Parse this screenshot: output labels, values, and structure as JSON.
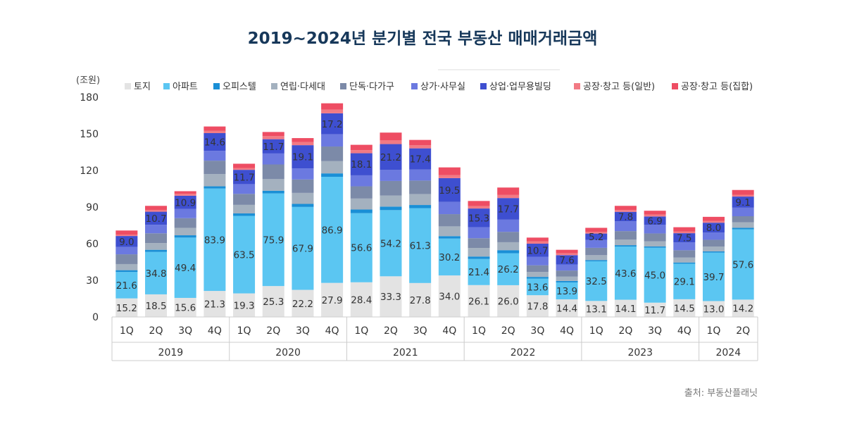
{
  "chart_data": {
    "type": "stacked-bar",
    "title": "2019~2024년 분기별 전국 부동산 매매거래금액",
    "unit_label": "(조원)",
    "source": "출처: 부동산플래닛",
    "ylim": [
      0,
      180
    ],
    "yticks": [
      "0",
      "30",
      "60",
      "90",
      "120",
      "150",
      "180"
    ],
    "ytick_values": [
      0,
      30,
      60,
      90,
      120,
      150,
      180
    ],
    "quarters": [
      "1Q",
      "2Q",
      "3Q",
      "4Q",
      "1Q",
      "2Q",
      "3Q",
      "4Q",
      "1Q",
      "2Q",
      "3Q",
      "4Q",
      "1Q",
      "2Q",
      "3Q",
      "4Q",
      "1Q",
      "2Q",
      "3Q",
      "4Q",
      "1Q",
      "2Q"
    ],
    "years": [
      {
        "label": "2019",
        "count": 4
      },
      {
        "label": "2020",
        "count": 4
      },
      {
        "label": "2021",
        "count": 4
      },
      {
        "label": "2022",
        "count": 4
      },
      {
        "label": "2023",
        "count": 4
      },
      {
        "label": "2024",
        "count": 2
      }
    ],
    "series": [
      {
        "name": "토지",
        "color": "#e3e3e3",
        "show_labels": true,
        "values": [
          15.2,
          18.5,
          15.6,
          21.3,
          19.3,
          25.3,
          22.2,
          27.9,
          28.4,
          33.3,
          27.8,
          34.0,
          26.1,
          26.0,
          17.8,
          14.4,
          13.1,
          14.1,
          11.7,
          14.5,
          13.0,
          14.2
        ],
        "labels": [
          "15.2",
          "18.5",
          "15.6",
          "21.3",
          "19.3",
          "25.3",
          "22.2",
          "27.9",
          "28.4",
          "33.3",
          "27.8",
          "34.0",
          "26.1",
          "26.0",
          "17.8",
          "14.4",
          "13.1",
          "14.1",
          "11.7",
          "14.5",
          "13.0",
          "14.2"
        ]
      },
      {
        "name": "아파트",
        "color": "#5bc6f2",
        "show_labels": true,
        "values": [
          21.6,
          34.8,
          49.4,
          83.9,
          63.5,
          75.9,
          67.9,
          86.9,
          56.6,
          54.2,
          61.3,
          30.2,
          21.4,
          26.2,
          13.6,
          13.9,
          32.5,
          43.6,
          45.0,
          29.1,
          39.7,
          57.6
        ],
        "labels": [
          "21.6",
          "34.8",
          "49.4",
          "83.9",
          "63.5",
          "75.9",
          "67.9",
          "86.9",
          "56.6",
          "54.2",
          "61.3",
          "30.2",
          "21.4",
          "26.2",
          "13.6",
          "13.9",
          "32.5",
          "43.6",
          "45.0",
          "29.1",
          "39.7",
          "57.6"
        ]
      },
      {
        "name": "오피스텔",
        "color": "#1a8fd6",
        "show_labels": false,
        "values": [
          1.5,
          1.7,
          1.9,
          1.8,
          2.0,
          2.2,
          2.5,
          2.8,
          3.0,
          2.9,
          2.6,
          2.0,
          2.0,
          2.5,
          1.4,
          1.2,
          1.0,
          1.1,
          1.0,
          1.0,
          1.0,
          1.2
        ]
      },
      {
        "name": "연립·다세대",
        "color": "#a4b1bf",
        "show_labels": false,
        "values": [
          5.0,
          5.5,
          6.0,
          10.0,
          7.0,
          9.5,
          9.0,
          10.0,
          9.0,
          9.0,
          9.0,
          8.0,
          7.0,
          6.5,
          4.0,
          3.5,
          4.0,
          4.5,
          4.2,
          4.0,
          4.0,
          4.5
        ]
      },
      {
        "name": "단독·다가구",
        "color": "#7c8aa8",
        "show_labels": false,
        "values": [
          8.0,
          8.0,
          8.0,
          11.0,
          9.0,
          12.0,
          11.0,
          12.0,
          10.0,
          12.0,
          11.0,
          10.0,
          8.0,
          8.5,
          5.5,
          5.0,
          6.0,
          7.0,
          6.5,
          6.0,
          5.5,
          5.0
        ]
      },
      {
        "name": "상가·사무실",
        "color": "#6b79e0",
        "show_labels": false,
        "values": [
          6.0,
          7.0,
          7.5,
          8.0,
          8.0,
          9.0,
          9.0,
          10.0,
          9.0,
          9.0,
          9.0,
          10.0,
          9.0,
          10.0,
          7.0,
          5.0,
          6.5,
          8.0,
          7.0,
          6.5,
          6.0,
          7.0
        ]
      },
      {
        "name": "상업·업무용빌딩",
        "color": "#3e4fd0",
        "show_labels": true,
        "values": [
          9.0,
          10.7,
          10.9,
          14.6,
          11.7,
          11.7,
          19.1,
          17.2,
          18.1,
          21.2,
          17.4,
          19.5,
          15.3,
          17.7,
          10.7,
          7.6,
          5.2,
          7.8,
          6.9,
          7.5,
          8.0,
          9.1
        ],
        "labels": [
          "9.0",
          "10.7",
          "10.9",
          "14.6",
          "11.7",
          "11.7",
          "19.1",
          "17.2",
          "18.1",
          "21.2",
          "17.4",
          "19.5",
          "15.3",
          "17.7",
          "10.7",
          "7.6",
          "5.2",
          "7.8",
          "6.9",
          "7.5",
          "8.0",
          "9.1"
        ]
      },
      {
        "name": "공장·창고 등(일반)",
        "color": "#f27a84",
        "show_labels": false,
        "values": [
          1.0,
          1.5,
          1.5,
          2.0,
          1.5,
          2.5,
          2.5,
          3.0,
          2.5,
          3.0,
          2.5,
          2.5,
          2.0,
          2.5,
          2.0,
          1.5,
          1.5,
          1.5,
          1.5,
          1.5,
          1.5,
          1.5
        ]
      },
      {
        "name": "공장·창고 등(집합)",
        "color": "#ee4d63",
        "show_labels": false,
        "values": [
          3.5,
          3.3,
          2.2,
          3.4,
          3.5,
          3.4,
          3.3,
          5.2,
          4.4,
          6.4,
          4.4,
          6.3,
          4.2,
          6.1,
          3.0,
          2.9,
          3.2,
          3.4,
          3.2,
          3.4,
          3.3,
          3.9
        ]
      }
    ]
  }
}
